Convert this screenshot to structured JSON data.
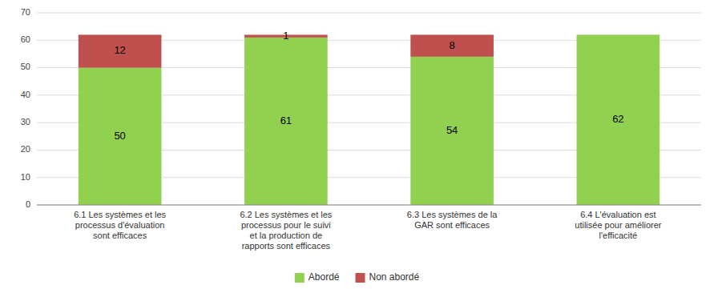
{
  "chart_data": {
    "type": "bar",
    "stacked": true,
    "categories": [
      "6.1 Les systèmes et les\nprocessus d'évaluation\nsont efficaces",
      "6.2 Les systèmes et les\nprocessus pour le suivi\net la production de\nrapports sont efficaces",
      "6.3 Les systèmes de la\nGAR sont efficaces",
      "6.4 L'évaluation est\nutilisée pour améliorer\nl'efficacité"
    ],
    "series": [
      {
        "name": "Abordé",
        "color": "#92D050",
        "values": [
          50,
          61,
          54,
          62
        ]
      },
      {
        "name": "Non abordé",
        "color": "#C0504D",
        "values": [
          12,
          1,
          8,
          0
        ]
      }
    ],
    "ylim": [
      0,
      70
    ],
    "yticks": [
      0,
      10,
      20,
      30,
      40,
      50,
      60,
      70
    ],
    "grid": true,
    "data_labels": true,
    "legend": "bottom"
  }
}
